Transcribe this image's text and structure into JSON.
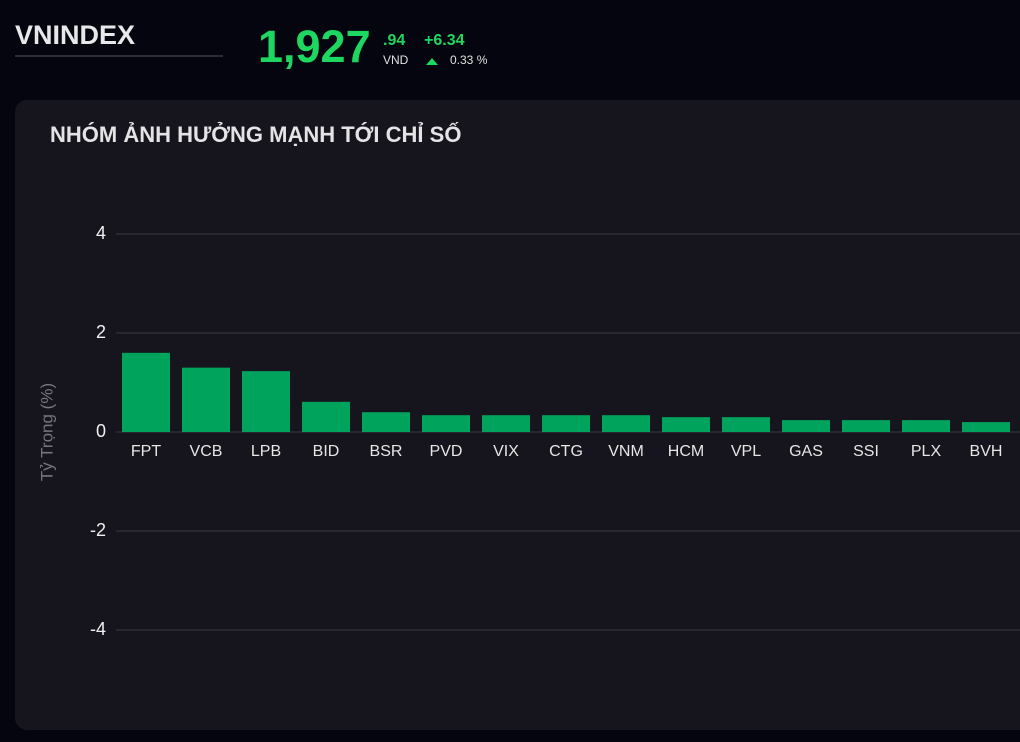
{
  "header": {
    "symbol": "VNINDEX",
    "price_int": "1,927",
    "price_dec": ".94",
    "currency": "VND",
    "change": "+6.34",
    "change_pct": "0.33 %"
  },
  "chart_data": {
    "type": "bar",
    "title": "NHÓM ẢNH HƯỞNG MẠNH TỚI CHỈ SỐ",
    "y_label": "Tỷ Trọng (%)",
    "categories": [
      "FPT",
      "VCB",
      "LPB",
      "BID",
      "BSR",
      "PVD",
      "VIX",
      "CTG",
      "VNM",
      "HCM",
      "VPL",
      "GAS",
      "SSI",
      "PLX",
      "BVH"
    ],
    "values": [
      1.6,
      1.3,
      1.23,
      0.61,
      0.4,
      0.34,
      0.34,
      0.34,
      0.34,
      0.3,
      0.3,
      0.24,
      0.24,
      0.24,
      0.2
    ],
    "color": "#00a35c",
    "ylim": [
      -5,
      5
    ],
    "yticks": [
      -4,
      -2,
      0,
      2,
      4
    ],
    "grid": true
  }
}
